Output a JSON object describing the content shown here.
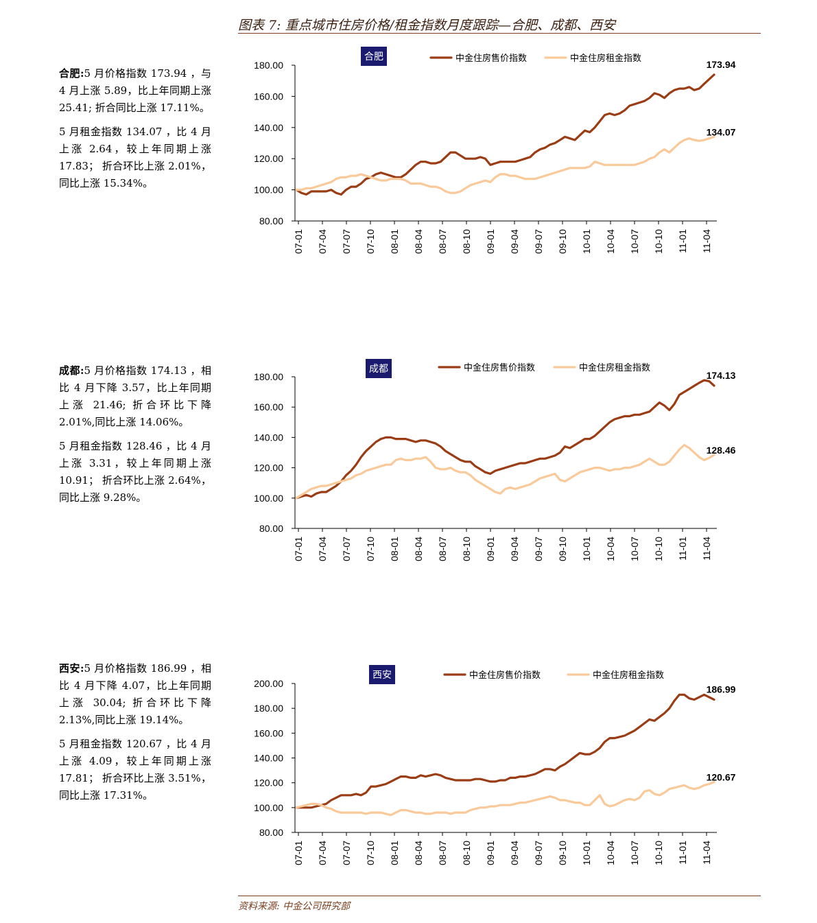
{
  "header": {
    "title": "图表 7: 重点城市住房价格/租金指数月度跟踪—合肥、成都、西安"
  },
  "footer": {
    "source": "资料来源: 中金公司研究部"
  },
  "notes": [
    {
      "city": "合肥",
      "price_text": "5 月价格指数 173.94 ，与 4 月上涨 5.89，比上年同期上涨 25.41; 折合同比上涨 17.11%。",
      "rent_text": "5 月租金指数 134.07 ，比 4 月上涨 2.64，较上年同期上涨 17.83； 折合环比上涨 2.01%，同比上涨 15.34%。"
    },
    {
      "city": "成都",
      "price_text": "5 月价格指数 174.13 ，相比 4 月下降 3.57，比上年同期上涨 21.46; 折合环比下降 2.01%,同比上涨 14.06%。",
      "rent_text": "5 月租金指数 128.46 ，比 4 月上涨 3.31，较上年同期上涨 10.91； 折合环比上涨 2.64%，同比上涨 9.28%。"
    },
    {
      "city": "西安",
      "price_text": "5 月价格指数 186.99 ，相比 4 月下降 4.07，比上年同期上涨 30.04; 折合环比下降 2.13%,同比上涨 19.14%。",
      "rent_text": "5 月租金指数 120.67 ，比 4 月上涨 4.09，较上年同期上涨 17.81； 折合环比上涨 3.51%，同比上涨 17.31%。"
    }
  ],
  "colors": {
    "price": "#9a3c14",
    "rent": "#f9c99a",
    "badge": "#1a1a6e",
    "axis": "#000000"
  },
  "chart_data": [
    {
      "type": "line",
      "title": "合肥",
      "x_ticks": [
        "07-01",
        "07-04",
        "07-07",
        "07-10",
        "08-01",
        "08-04",
        "08-07",
        "08-10",
        "09-01",
        "09-04",
        "09-07",
        "09-10",
        "10-01",
        "10-04",
        "10-07",
        "10-10",
        "11-01",
        "11-04"
      ],
      "ylim": [
        80,
        180
      ],
      "yticks": [
        "80.00",
        "100.00",
        "120.00",
        "140.00",
        "160.00",
        "180.00"
      ],
      "legend": "top",
      "series": [
        {
          "name": "中金住房售价指数",
          "end_label": "173.94",
          "values": [
            100,
            98,
            97,
            99,
            99,
            99,
            99,
            100,
            98,
            97,
            100,
            102,
            102,
            104,
            107,
            108,
            110,
            111,
            110,
            109,
            108,
            108,
            110,
            113,
            116,
            118,
            118,
            117,
            117,
            118,
            121,
            124,
            124,
            122,
            120,
            120,
            120,
            121,
            120,
            116,
            117,
            118,
            118,
            118,
            118,
            119,
            120,
            121,
            124,
            126,
            127,
            129,
            130,
            132,
            134,
            133,
            132,
            135,
            138,
            137,
            140,
            144,
            148,
            149,
            148,
            149,
            151,
            154,
            155,
            156,
            157,
            159,
            162,
            161,
            159,
            162,
            164,
            165,
            165,
            166,
            164,
            165,
            168,
            171,
            173.94
          ]
        },
        {
          "name": "中金住房租金指数",
          "end_label": "134.07",
          "values": [
            100,
            100,
            101,
            101,
            102,
            103,
            104,
            105,
            107,
            108,
            108,
            109,
            109,
            110,
            109,
            108,
            107,
            106,
            106,
            107,
            107,
            107,
            106,
            104,
            104,
            104,
            103,
            102,
            102,
            101,
            99,
            98,
            98,
            99,
            101,
            103,
            104,
            105,
            106,
            105,
            108,
            110,
            110,
            109,
            109,
            108,
            107,
            107,
            107,
            108,
            109,
            110,
            111,
            112,
            113,
            114,
            114,
            114,
            114,
            115,
            118,
            117,
            116,
            116,
            116,
            116,
            116,
            116,
            116,
            117,
            118,
            120,
            121,
            124,
            126,
            124,
            127,
            130,
            132,
            133,
            132,
            131.43,
            132,
            133,
            134.07
          ]
        }
      ]
    },
    {
      "type": "line",
      "title": "成都",
      "x_ticks": [
        "07-01",
        "07-04",
        "07-07",
        "07-10",
        "08-01",
        "08-04",
        "08-07",
        "08-10",
        "09-01",
        "09-04",
        "09-07",
        "09-10",
        "10-01",
        "10-04",
        "10-07",
        "10-10",
        "11-01",
        "11-04"
      ],
      "ylim": [
        80,
        180
      ],
      "yticks": [
        "80.00",
        "100.00",
        "120.00",
        "140.00",
        "160.00",
        "180.00"
      ],
      "legend": "top",
      "series": [
        {
          "name": "中金住房售价指数",
          "end_label": "174.13",
          "values": [
            100,
            101,
            102,
            101,
            103,
            104,
            104,
            106,
            108,
            111,
            115,
            118,
            122,
            127,
            131,
            134,
            137,
            139,
            140,
            140,
            139,
            139,
            139,
            138,
            137,
            138,
            138,
            137,
            136,
            134,
            131,
            129,
            127,
            125,
            124,
            124,
            121,
            119,
            117,
            116,
            118,
            119,
            120,
            121,
            122,
            123,
            123,
            124,
            125,
            126,
            126,
            127,
            128,
            130,
            134,
            133,
            135,
            137,
            139,
            139,
            141,
            144,
            147,
            150,
            152,
            153,
            154,
            154,
            155,
            155,
            156,
            157,
            160,
            163,
            161,
            158,
            162,
            168,
            170,
            172,
            174,
            176,
            177.7,
            177,
            174.13
          ]
        },
        {
          "name": "中金住房租金指数",
          "end_label": "128.46",
          "values": [
            100,
            102,
            104,
            106,
            107,
            108,
            108,
            109,
            110,
            111,
            112,
            113,
            115,
            116,
            118,
            119,
            120,
            121,
            122,
            122,
            125,
            126,
            125,
            125,
            126,
            126,
            127,
            124,
            120,
            119,
            119,
            120,
            118,
            117,
            117,
            115,
            112,
            110,
            108,
            106,
            104,
            103,
            106,
            107,
            106,
            107,
            108,
            109,
            111,
            113,
            114,
            115,
            116,
            112,
            111,
            113,
            115,
            117,
            118,
            119,
            120,
            120,
            119,
            118,
            119,
            119,
            120,
            120,
            121,
            122,
            124,
            126,
            124,
            122,
            122,
            124,
            128,
            132,
            135,
            133,
            130,
            127,
            125,
            126.5,
            128.46
          ]
        }
      ]
    },
    {
      "type": "line",
      "title": "西安",
      "x_ticks": [
        "07-01",
        "07-04",
        "07-07",
        "07-10",
        "08-01",
        "08-04",
        "08-07",
        "08-10",
        "09-01",
        "09-04",
        "09-07",
        "09-10",
        "10-01",
        "10-04",
        "10-07",
        "10-10",
        "11-01",
        "11-04"
      ],
      "ylim": [
        80,
        200
      ],
      "yticks": [
        "80.00",
        "100.00",
        "120.00",
        "140.00",
        "160.00",
        "180.00",
        "200.00"
      ],
      "legend": "top",
      "series": [
        {
          "name": "中金住房售价指数",
          "end_label": "186.99",
          "values": [
            100,
            100,
            100,
            100,
            101,
            102,
            103,
            106,
            108,
            110,
            110,
            110,
            111,
            110,
            112,
            117,
            117,
            118,
            119,
            121,
            123,
            125,
            125,
            124,
            124,
            126,
            125,
            126,
            127,
            126,
            124,
            123,
            122,
            122,
            122,
            122,
            123,
            123,
            122,
            121,
            121,
            122,
            122,
            124,
            124,
            125,
            125,
            126,
            127,
            129,
            131,
            131,
            130,
            133,
            135,
            138,
            141,
            144,
            143,
            143,
            145,
            148,
            153,
            156,
            156,
            157,
            158,
            160,
            162,
            165,
            168,
            171,
            170,
            173,
            176,
            180,
            186,
            191,
            191,
            188,
            187,
            189,
            191,
            189,
            186.99
          ]
        },
        {
          "name": "中金住房租金指数",
          "end_label": "120.67",
          "values": [
            100,
            101,
            102,
            103,
            103,
            102,
            100,
            99,
            97,
            96,
            96,
            96,
            96,
            96,
            95,
            96,
            96,
            96,
            95,
            94,
            96,
            98,
            98,
            97,
            96,
            96,
            95,
            95,
            96,
            96,
            96,
            95,
            96,
            96,
            96,
            98,
            99,
            100,
            100,
            101,
            101,
            102,
            102,
            102,
            103,
            104,
            104,
            105,
            106,
            107,
            108,
            109,
            108,
            106,
            106,
            105,
            104,
            104,
            102,
            102,
            106,
            110,
            103,
            101,
            102,
            104,
            106,
            107,
            106,
            108,
            113,
            114,
            111,
            110,
            112,
            115,
            116,
            117,
            118,
            116,
            115,
            116,
            118,
            119,
            120.67
          ]
        }
      ]
    }
  ]
}
